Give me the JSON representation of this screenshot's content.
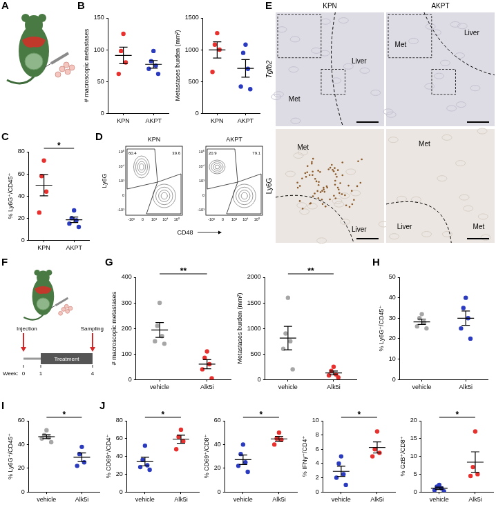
{
  "chart_data": [
    {
      "type": "scatter",
      "panel": "B",
      "y_label": "# macroscopic metastases",
      "categories": [
        "KPN",
        "AKPT"
      ],
      "values": [
        [
          125,
          98,
          80,
          62
        ],
        [
          98,
          82,
          75,
          70,
          62
        ]
      ],
      "mean": [
        91,
        77
      ],
      "error": [
        13,
        6
      ],
      "colors": [
        "#e8312e",
        "#2b3bc0"
      ],
      "ylim": [
        0,
        150
      ],
      "yticks": [
        0,
        50,
        100,
        150
      ]
    },
    {
      "type": "scatter",
      "y_label": "Metastases burden (mm²)",
      "categories": [
        "KPN",
        "AKPT"
      ],
      "values": [
        [
          1260,
          1080,
          1000,
          650
        ],
        [
          1080,
          950,
          700,
          420,
          380
        ]
      ],
      "mean": [
        997,
        706
      ],
      "error": [
        128,
        139
      ],
      "colors": [
        "#e8312e",
        "#2b3bc0"
      ],
      "ylim": [
        0,
        1500
      ],
      "yticks": [
        0,
        500,
        1000,
        1500
      ]
    },
    {
      "type": "scatter",
      "panel": "C",
      "y_label": "% Ly6G⁺/CD45⁺",
      "categories": [
        "KPN",
        "AKPT"
      ],
      "values": [
        [
          72,
          58,
          44,
          25
        ],
        [
          27,
          20,
          18,
          15,
          12
        ]
      ],
      "mean": [
        49.75,
        18.4
      ],
      "error": [
        9.6,
        2.5
      ],
      "colors": [
        "#e8312e",
        "#2b3bc0"
      ],
      "ylim": [
        0,
        80
      ],
      "yticks": [
        0,
        20,
        40,
        60,
        80
      ],
      "significance": "*"
    },
    {
      "type": "scatter",
      "panel": "G",
      "y_label": "# macroscopic metastases",
      "categories": [
        "vehicle",
        "Alk5i"
      ],
      "values": [
        [
          300,
          210,
          170,
          150,
          140
        ],
        [
          110,
          85,
          60,
          40,
          5
        ]
      ],
      "mean": [
        194,
        60
      ],
      "error": [
        29,
        18
      ],
      "colors": [
        "#a6a6a6",
        "#e8312e"
      ],
      "ylim": [
        0,
        400
      ],
      "yticks": [
        0,
        100,
        200,
        300,
        400
      ],
      "significance": "**"
    },
    {
      "type": "scatter",
      "y_label": "Metastases burden (mm²)",
      "categories": [
        "vehicle",
        "Alk5i"
      ],
      "values": [
        [
          1600,
          900,
          750,
          600,
          200
        ],
        [
          250,
          170,
          100,
          80,
          40
        ]
      ],
      "mean": [
        810,
        128
      ],
      "error": [
        229,
        37
      ],
      "colors": [
        "#a6a6a6",
        "#e8312e"
      ],
      "ylim": [
        0,
        2000
      ],
      "yticks": [
        0,
        500,
        1000,
        1500,
        2000
      ],
      "significance": "**"
    },
    {
      "type": "scatter",
      "panel": "H",
      "y_label": "% Ly6G⁺/CD45⁺",
      "categories": [
        "vehicle",
        "Alk5i"
      ],
      "values": [
        [
          32,
          30,
          28,
          26,
          25
        ],
        [
          40,
          35,
          30,
          25,
          20
        ]
      ],
      "mean": [
        28.2,
        30
      ],
      "error": [
        1.3,
        3.5
      ],
      "colors": [
        "#a6a6a6",
        "#2b3bc0"
      ],
      "ylim": [
        0,
        50
      ],
      "yticks": [
        0,
        10,
        20,
        30,
        40,
        50
      ]
    },
    {
      "type": "scatter",
      "panel": "I",
      "y_label": "% Ly6G⁺/CD45⁺",
      "categories": [
        "vehicle",
        "Alk5i"
      ],
      "values": [
        [
          52,
          48,
          46,
          45,
          42
        ],
        [
          38,
          32,
          25,
          22
        ]
      ],
      "mean": [
        46.6,
        29.25
      ],
      "error": [
        1.7,
        3.6
      ],
      "colors": [
        "#a6a6a6",
        "#2b3bc0"
      ],
      "ylim": [
        0,
        60
      ],
      "yticks": [
        0,
        20,
        40,
        60
      ],
      "significance": "*"
    },
    {
      "type": "scatter",
      "panel": "J",
      "y_label": "% CD69⁺/CD4⁺",
      "categories": [
        "vehicle",
        "Alk5i"
      ],
      "values": [
        [
          52,
          36,
          30,
          28,
          25
        ],
        [
          70,
          62,
          57,
          48
        ]
      ],
      "mean": [
        34.2,
        59.25
      ],
      "error": [
        4.8,
        4.6
      ],
      "colors": [
        "#2b3bc0",
        "#e8312e"
      ],
      "ylim": [
        0,
        80
      ],
      "yticks": [
        0,
        20,
        40,
        60,
        80
      ],
      "significance": "*"
    },
    {
      "type": "scatter",
      "y_label": "% CD69⁺/CD8⁺",
      "categories": [
        "vehicle",
        "Alk5i"
      ],
      "values": [
        [
          40,
          32,
          25,
          22,
          17
        ],
        [
          50,
          45,
          44,
          40
        ]
      ],
      "mean": [
        27.2,
        44.75
      ],
      "error": [
        4,
        2.1
      ],
      "colors": [
        "#2b3bc0",
        "#e8312e"
      ],
      "ylim": [
        0,
        60
      ],
      "yticks": [
        0,
        20,
        40,
        60
      ],
      "significance": "*"
    },
    {
      "type": "scatter",
      "y_label": "% IFNγ⁺/CD4⁺",
      "categories": [
        "vehicle",
        "Alk5i"
      ],
      "values": [
        [
          5,
          4,
          2.5,
          2,
          1
        ],
        [
          8.5,
          6,
          5.5,
          5
        ]
      ],
      "mean": [
        2.9,
        6.25
      ],
      "error": [
        0.71,
        0.78
      ],
      "colors": [
        "#2b3bc0",
        "#e8312e"
      ],
      "ylim": [
        0,
        10
      ],
      "yticks": [
        0,
        2,
        4,
        6,
        8,
        10
      ],
      "significance": "*"
    },
    {
      "type": "scatter",
      "y_label": "% GzB⁺/CD8⁺",
      "categories": [
        "vehicle",
        "Alk5i"
      ],
      "values": [
        [
          2,
          1.5,
          1,
          0.5,
          0.2
        ],
        [
          17,
          7,
          5,
          4.5
        ]
      ],
      "mean": [
        1.04,
        8.375
      ],
      "error": [
        0.33,
        2.9
      ],
      "colors": [
        "#2b3bc0",
        "#e8312e"
      ],
      "ylim": [
        0,
        20
      ],
      "yticks": [
        0,
        5,
        10,
        15,
        20
      ],
      "significance": "*"
    }
  ],
  "figure": {
    "A": {
      "panel": "A"
    },
    "D": {
      "panel": "D",
      "y_label": "Ly6G",
      "x_label": "CD48",
      "yticks": [
        "10⁵",
        "10⁴",
        "10³",
        "0",
        "-10³"
      ],
      "xticks": [
        "-10³",
        "0",
        "10³",
        "10⁴",
        "10⁵"
      ],
      "plots": [
        {
          "title": "KPN",
          "gates": [
            "60.4",
            "39.6"
          ]
        },
        {
          "title": "AKPT",
          "gates": [
            "20.9",
            "79.1"
          ]
        }
      ]
    },
    "E": {
      "panel": "E",
      "columns": [
        "KPN",
        "AKPT"
      ],
      "rows": [
        "Tgfb2",
        "Ly6G"
      ],
      "images": [
        {
          "labels": [
            "Met",
            "Liver"
          ]
        },
        {
          "labels": [
            "Met",
            "Liver"
          ]
        },
        {
          "labels": [
            "Met",
            "Liver"
          ]
        },
        {
          "labels": [
            "Met",
            "Liver",
            "Met"
          ]
        }
      ]
    },
    "F": {
      "panel": "F",
      "timeline": {
        "events": [
          "Injection",
          "Sampling"
        ],
        "phase": "Treatment",
        "axis_label": "Week:",
        "weeks": [
          "0",
          "1",
          "4"
        ]
      }
    }
  }
}
